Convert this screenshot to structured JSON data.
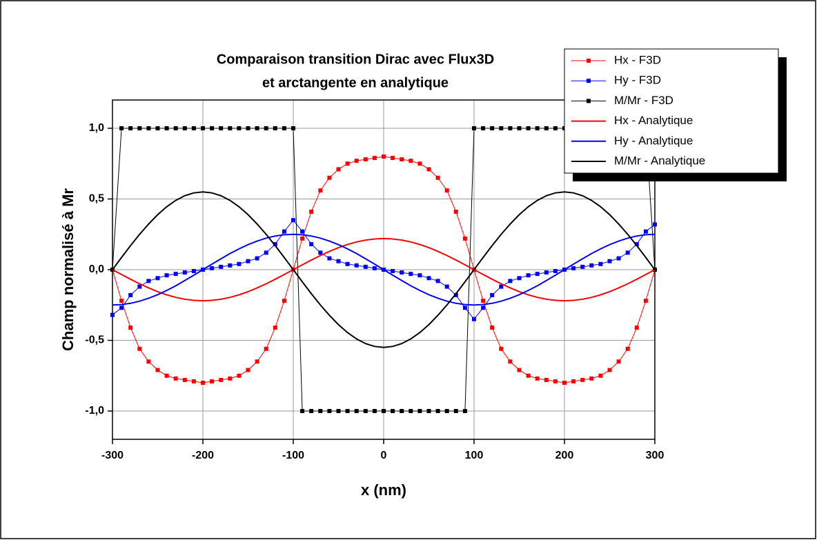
{
  "chart_data": {
    "type": "line",
    "title": [
      "Comparaison transition Dirac avec Flux3D",
      "et arctangente en analytique"
    ],
    "x_label": "x (nm)",
    "y_label": "Champ normalisé à Mr",
    "xlim": [
      -300,
      300
    ],
    "ylim": [
      -1.2,
      1.2
    ],
    "xticks": [
      -300,
      -200,
      -100,
      0,
      100,
      200,
      300
    ],
    "yticks": [
      {
        "value": -1,
        "label": "-1,0"
      },
      {
        "value": -0.5,
        "label": "-0,5"
      },
      {
        "value": 0,
        "label": "0,0"
      },
      {
        "value": 0.5,
        "label": "0,5"
      },
      {
        "value": 1,
        "label": "1,0"
      }
    ],
    "grid": true,
    "legend": "top-right",
    "x": [
      -300,
      -290,
      -280,
      -270,
      -260,
      -250,
      -240,
      -230,
      -220,
      -210,
      -200,
      -190,
      -180,
      -170,
      -160,
      -150,
      -140,
      -130,
      -120,
      -110,
      -100,
      -90,
      -80,
      -70,
      -60,
      -50,
      -40,
      -30,
      -20,
      -10,
      0,
      10,
      20,
      30,
      40,
      50,
      60,
      70,
      80,
      90,
      100,
      110,
      120,
      130,
      140,
      150,
      160,
      170,
      180,
      190,
      200,
      210,
      220,
      230,
      240,
      250,
      260,
      270,
      280,
      290,
      300
    ],
    "series": [
      {
        "name": "Hx - F3D",
        "color": "#ff0000",
        "marker": "square",
        "values": [
          0,
          -0.22,
          -0.41,
          -0.56,
          -0.65,
          -0.71,
          -0.75,
          -0.77,
          -0.78,
          -0.79,
          -0.8,
          -0.79,
          -0.78,
          -0.77,
          -0.75,
          -0.71,
          -0.65,
          -0.56,
          -0.41,
          -0.22,
          0,
          0.22,
          0.41,
          0.56,
          0.65,
          0.71,
          0.75,
          0.77,
          0.78,
          0.79,
          0.8,
          0.79,
          0.78,
          0.77,
          0.75,
          0.71,
          0.65,
          0.56,
          0.41,
          0.22,
          0,
          -0.22,
          -0.41,
          -0.56,
          -0.65,
          -0.71,
          -0.75,
          -0.77,
          -0.78,
          -0.79,
          -0.8,
          -0.79,
          -0.78,
          -0.77,
          -0.75,
          -0.71,
          -0.65,
          -0.56,
          -0.41,
          -0.22,
          0
        ]
      },
      {
        "name": "Hy - F3D",
        "color": "#0000ff",
        "marker": "square",
        "values": [
          -0.32,
          -0.27,
          -0.18,
          -0.12,
          -0.08,
          -0.06,
          -0.04,
          -0.03,
          -0.02,
          -0.01,
          0,
          0.01,
          0.02,
          0.03,
          0.04,
          0.06,
          0.08,
          0.12,
          0.18,
          0.27,
          0.35,
          0.27,
          0.18,
          0.12,
          0.08,
          0.06,
          0.04,
          0.03,
          0.02,
          0.01,
          0,
          -0.01,
          -0.02,
          -0.03,
          -0.04,
          -0.06,
          -0.08,
          -0.12,
          -0.18,
          -0.27,
          -0.35,
          -0.27,
          -0.18,
          -0.12,
          -0.08,
          -0.06,
          -0.04,
          -0.03,
          -0.02,
          -0.01,
          0,
          0.01,
          0.02,
          0.03,
          0.04,
          0.06,
          0.08,
          0.12,
          0.18,
          0.27,
          0.32
        ]
      },
      {
        "name": "M/Mr - F3D",
        "color": "#000000",
        "marker": "square",
        "values": [
          0,
          1,
          1,
          1,
          1,
          1,
          1,
          1,
          1,
          1,
          1,
          1,
          1,
          1,
          1,
          1,
          1,
          1,
          1,
          1,
          1,
          -1,
          -1,
          -1,
          -1,
          -1,
          -1,
          -1,
          -1,
          -1,
          -1,
          -1,
          -1,
          -1,
          -1,
          -1,
          -1,
          -1,
          -1,
          -1,
          1,
          1,
          1,
          1,
          1,
          1,
          1,
          1,
          1,
          1,
          1,
          1,
          1,
          1,
          1,
          1,
          1,
          1,
          1,
          1,
          0
        ]
      },
      {
        "name": "Hx - Analytique",
        "color": "#ff0000",
        "values": [
          0,
          -0.034,
          -0.068,
          -0.1,
          -0.129,
          -0.156,
          -0.178,
          -0.196,
          -0.209,
          -0.217,
          -0.22,
          -0.217,
          -0.209,
          -0.196,
          -0.178,
          -0.156,
          -0.129,
          -0.1,
          -0.068,
          -0.034,
          0,
          0.034,
          0.068,
          0.1,
          0.129,
          0.156,
          0.178,
          0.196,
          0.209,
          0.217,
          0.22,
          0.217,
          0.209,
          0.196,
          0.178,
          0.156,
          0.129,
          0.1,
          0.068,
          0.034,
          0,
          -0.034,
          -0.068,
          -0.1,
          -0.129,
          -0.156,
          -0.178,
          -0.196,
          -0.209,
          -0.217,
          -0.22,
          -0.217,
          -0.209,
          -0.196,
          -0.178,
          -0.156,
          -0.129,
          -0.1,
          -0.068,
          -0.034,
          0
        ]
      },
      {
        "name": "Hy - Analytique",
        "color": "#0000ff",
        "values": [
          -0.25,
          -0.247,
          -0.238,
          -0.223,
          -0.202,
          -0.177,
          -0.147,
          -0.114,
          -0.077,
          -0.039,
          0,
          0.039,
          0.077,
          0.114,
          0.147,
          0.177,
          0.202,
          0.223,
          0.238,
          0.247,
          0.25,
          0.247,
          0.238,
          0.223,
          0.202,
          0.177,
          0.147,
          0.114,
          0.077,
          0.039,
          0,
          -0.039,
          -0.077,
          -0.114,
          -0.147,
          -0.177,
          -0.202,
          -0.223,
          -0.238,
          -0.247,
          -0.25,
          -0.247,
          -0.238,
          -0.223,
          -0.202,
          -0.177,
          -0.147,
          -0.114,
          -0.077,
          -0.039,
          0,
          0.039,
          0.077,
          0.114,
          0.147,
          0.177,
          0.202,
          0.223,
          0.238,
          0.247,
          0.25
        ]
      },
      {
        "name": "M/Mr - Analytique",
        "color": "#000000",
        "values": [
          0,
          0.086,
          0.17,
          0.25,
          0.323,
          0.389,
          0.445,
          0.49,
          0.523,
          0.543,
          0.55,
          0.543,
          0.523,
          0.49,
          0.445,
          0.389,
          0.323,
          0.25,
          0.17,
          0.086,
          0,
          -0.086,
          -0.17,
          -0.25,
          -0.323,
          -0.389,
          -0.445,
          -0.49,
          -0.523,
          -0.543,
          -0.55,
          -0.543,
          -0.523,
          -0.49,
          -0.445,
          -0.389,
          -0.323,
          -0.25,
          -0.17,
          -0.086,
          0,
          0.086,
          0.17,
          0.25,
          0.323,
          0.389,
          0.445,
          0.49,
          0.523,
          0.543,
          0.55,
          0.543,
          0.523,
          0.49,
          0.445,
          0.389,
          0.323,
          0.25,
          0.17,
          0.086,
          0
        ]
      }
    ]
  }
}
